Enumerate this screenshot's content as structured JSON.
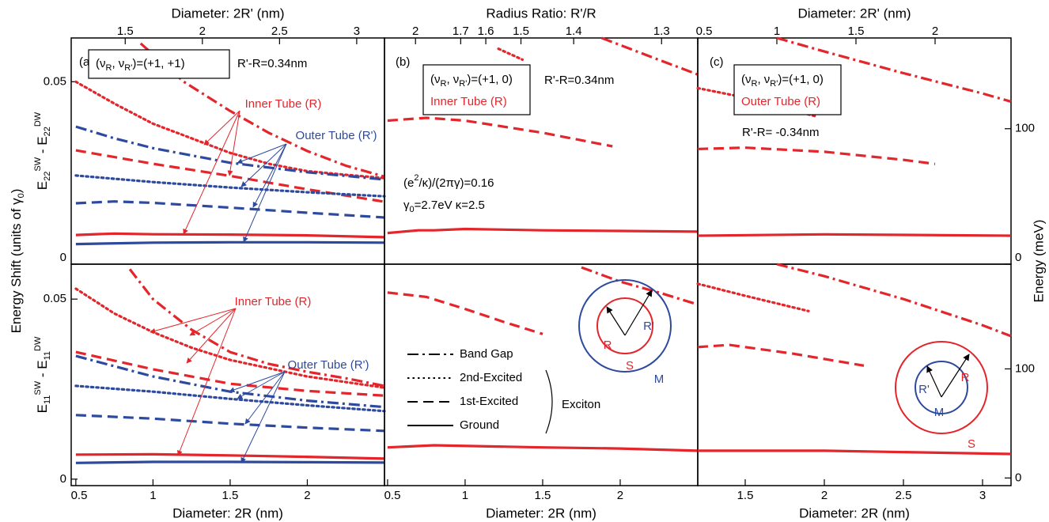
{
  "figure": {
    "y_label": [
      {
        "text": "Energy Shift  (units of γ"
      },
      {
        "text": "0",
        "shift": "sub"
      },
      {
        "text": ")"
      }
    ],
    "y2_label": "Energy  (meV)"
  },
  "chart_data": [
    {
      "type": "line",
      "panel_label": "(a)",
      "xlim": [
        0.47,
        2.5
      ],
      "x2lim": [
        1.15,
        3.18
      ],
      "x2ticks": [
        1.5,
        2,
        2.5,
        3
      ],
      "x2_label": "Diameter: 2R' (nm)",
      "ylim": [
        0,
        0.062
      ],
      "yticks": [
        0,
        0.05
      ],
      "y_label": [
        {
          "text": "E"
        },
        {
          "text": "22",
          "shift": "sub"
        },
        {
          "text": "SW",
          "shift": "sup"
        },
        {
          "text": " - E"
        },
        {
          "text": "22",
          "shift": "sub"
        },
        {
          "text": "DW",
          "shift": "sup"
        }
      ],
      "box": [
        {
          "parts": [
            {
              "text": "(ν"
            },
            {
              "text": "R",
              "shift": "sub"
            },
            {
              "text": ", ν"
            },
            {
              "text": "R'",
              "shift": "sub"
            },
            {
              "text": ")=(+1, +1)"
            }
          ],
          "color": "#000000"
        }
      ],
      "notes": [
        [
          {
            "text": "R'-R=0.34nm"
          }
        ]
      ],
      "arrow_labels": [
        {
          "text": "Inner Tube (R)",
          "color": "#e3262b"
        },
        {
          "text": "Outer Tube (R')",
          "color": "#2e4a9e"
        }
      ],
      "series": [
        {
          "style": "dashdot",
          "color": "#e3262b",
          "x": [
            0.92,
            1.2,
            1.5,
            1.75,
            2,
            2.25,
            2.5
          ],
          "values": [
            0.0605,
            0.05,
            0.042,
            0.036,
            0.031,
            0.027,
            0.024
          ]
        },
        {
          "style": "dotted",
          "color": "#e3262b",
          "x": [
            0.5,
            0.75,
            1,
            1.25,
            1.5,
            1.75,
            2,
            2.25,
            2.5
          ],
          "values": [
            0.05,
            0.044,
            0.0385,
            0.0345,
            0.0305,
            0.0275,
            0.0255,
            0.0245,
            0.0236
          ]
        },
        {
          "style": "dashdot",
          "color": "#2e4a9e",
          "x": [
            0.5,
            0.75,
            1,
            1.5,
            2,
            2.5
          ],
          "values": [
            0.0377,
            0.0345,
            0.0318,
            0.0278,
            0.0252,
            0.0232
          ]
        },
        {
          "style": "dashed",
          "color": "#e3262b",
          "x": [
            0.5,
            1,
            1.5,
            2,
            2.5
          ],
          "values": [
            0.0312,
            0.0275,
            0.0242,
            0.0205,
            0.0171
          ]
        },
        {
          "style": "dotted",
          "color": "#2e4a9e",
          "x": [
            0.5,
            1,
            1.5,
            2,
            2.5
          ],
          "values": [
            0.0243,
            0.0225,
            0.021,
            0.0197,
            0.0186
          ]
        },
        {
          "style": "dashed",
          "color": "#2e4a9e",
          "x": [
            0.5,
            0.75,
            1,
            1.5,
            2,
            2.5
          ],
          "values": [
            0.0167,
            0.0172,
            0.0168,
            0.0155,
            0.0141,
            0.0128
          ]
        },
        {
          "style": "solid",
          "color": "#e3262b",
          "x": [
            0.5,
            0.75,
            1,
            1.5,
            2,
            2.5
          ],
          "values": [
            0.008,
            0.0084,
            0.0082,
            0.0081,
            0.0079,
            0.0074
          ]
        },
        {
          "style": "solid",
          "color": "#2e4a9e",
          "x": [
            0.5,
            1,
            1.5,
            2,
            2.5
          ],
          "values": [
            0.0055,
            0.0059,
            0.006,
            0.006,
            0.0059
          ]
        }
      ]
    },
    {
      "type": "line",
      "panel_label": "(b)",
      "xlim": [
        0.48,
        2.5
      ],
      "x2ticks": [
        2,
        1.7,
        1.6,
        1.5,
        1.4,
        1.3
      ],
      "x2_scale": {
        "type": "ratio",
        "gap": 0.34
      },
      "x2_label": "Radius Ratio: R'/R",
      "y2lim": [
        0,
        167
      ],
      "box": [
        {
          "parts": [
            {
              "text": "(ν"
            },
            {
              "text": "R",
              "shift": "sub"
            },
            {
              "text": ", ν"
            },
            {
              "text": "R'",
              "shift": "sub"
            },
            {
              "text": ")=(+1, 0)"
            }
          ],
          "color": "#000000"
        },
        {
          "parts": [
            {
              "text": "Inner Tube (R)"
            }
          ],
          "color": "#e3262b"
        }
      ],
      "notes": [
        [
          {
            "text": "R'-R=0.34nm"
          }
        ],
        [
          {
            "text": "(e"
          },
          {
            "text": "2",
            "shift": "sup"
          },
          {
            "text": "/κ)/(2πγ)=0.16"
          }
        ],
        [
          {
            "text": "γ"
          },
          {
            "text": "0",
            "shift": "sub"
          },
          {
            "text": "=2.7eV  κ=2.5"
          }
        ]
      ],
      "series": [
        {
          "style": "dashdot",
          "color": "#e3262b",
          "axis": "y2",
          "x": [
            1.88,
            2.2,
            2.5
          ],
          "values": [
            167,
            153,
            140
          ]
        },
        {
          "style": "dotted",
          "color": "#e3262b",
          "axis": "y2",
          "x": [
            1.215,
            1.37
          ],
          "values": [
            159,
            151
          ]
        },
        {
          "style": "dashed",
          "color": "#e3262b",
          "axis": "y2",
          "x": [
            0.5,
            0.75,
            1,
            1.5,
            1.95
          ],
          "values": [
            106,
            108,
            106,
            97,
            87
          ]
        },
        {
          "style": "solid",
          "color": "#e3262b",
          "axis": "y2",
          "x": [
            0.5,
            0.7,
            0.8,
            1,
            1.5,
            2,
            2.5
          ],
          "values": [
            23,
            25,
            25,
            26,
            25,
            24.5,
            24
          ]
        }
      ]
    },
    {
      "type": "line",
      "panel_label": "(c)",
      "xlim": [
        1.2,
        3.18
      ],
      "x2lim": [
        0.5,
        2.48
      ],
      "x2ticks": [
        0.5,
        1,
        1.5,
        2
      ],
      "x2_label": "Diameter: 2R' (nm)",
      "y2lim": [
        0,
        167
      ],
      "y2ticks": [
        0,
        100
      ],
      "box": [
        {
          "parts": [
            {
              "text": "(ν"
            },
            {
              "text": "R",
              "shift": "sub"
            },
            {
              "text": ", ν"
            },
            {
              "text": "R'",
              "shift": "sub"
            },
            {
              "text": ")=(+1, 0)"
            }
          ],
          "color": "#000000"
        },
        {
          "parts": [
            {
              "text": "Outer Tube (R)"
            }
          ],
          "color": "#e3262b"
        }
      ],
      "notes": [
        [
          {
            "text": "R'-R= -0.34nm"
          }
        ]
      ],
      "series": [
        {
          "style": "dashdot",
          "color": "#e3262b",
          "axis": "y2",
          "x": [
            1.7,
            2,
            2.5,
            3,
            3.18
          ],
          "values": [
            167,
            157,
            141,
            126,
            120
          ]
        },
        {
          "style": "dotted",
          "color": "#e3262b",
          "axis": "y2",
          "x": [
            1.2,
            1.5,
            1.95
          ],
          "values": [
            130,
            123,
            109
          ]
        },
        {
          "style": "dashed",
          "color": "#e3262b",
          "axis": "y2",
          "x": [
            1.2,
            1.5,
            2,
            2.5,
            2.7
          ],
          "values": [
            85,
            86,
            83,
            77,
            74
          ]
        },
        {
          "style": "solid",
          "color": "#e3262b",
          "axis": "y2",
          "x": [
            1.2,
            2,
            3.18
          ],
          "values": [
            21,
            22,
            21
          ]
        }
      ]
    },
    {
      "type": "line",
      "xlim": [
        0.47,
        2.5
      ],
      "xticks": [
        0.5,
        1,
        1.5,
        2
      ],
      "x_label": "Diameter: 2R (nm)",
      "ylim": [
        -0.0018,
        0.0597
      ],
      "yticks": [
        0,
        0.05
      ],
      "y_label": [
        {
          "text": "E"
        },
        {
          "text": "11",
          "shift": "sub"
        },
        {
          "text": "SW",
          "shift": "sup"
        },
        {
          "text": " - E"
        },
        {
          "text": "11",
          "shift": "sub"
        },
        {
          "text": "DW",
          "shift": "sup"
        }
      ],
      "arrow_labels": [
        {
          "text": "Inner Tube (R)",
          "color": "#e3262b"
        },
        {
          "text": "Outer Tube (R')",
          "color": "#2e4a9e"
        }
      ],
      "series": [
        {
          "style": "dashdot",
          "color": "#e3262b",
          "x": [
            0.85,
            1,
            1.25,
            1.5,
            1.75,
            2,
            2.25,
            2.5
          ],
          "values": [
            0.0583,
            0.05,
            0.0415,
            0.0353,
            0.032,
            0.0298,
            0.028,
            0.0259
          ]
        },
        {
          "style": "dotted",
          "color": "#e3262b",
          "x": [
            0.5,
            0.75,
            1,
            1.25,
            1.5,
            2,
            2.5
          ],
          "values": [
            0.0529,
            0.046,
            0.0408,
            0.0365,
            0.0331,
            0.0285,
            0.0254
          ]
        },
        {
          "style": "dashed",
          "color": "#e3262b",
          "x": [
            0.5,
            1,
            1.5,
            2,
            2.5
          ],
          "values": [
            0.0353,
            0.0305,
            0.0265,
            0.0245,
            0.0232
          ]
        },
        {
          "style": "dashdot",
          "color": "#2e4a9e",
          "x": [
            0.5,
            1,
            1.5,
            2,
            2.5
          ],
          "values": [
            0.0342,
            0.0285,
            0.0243,
            0.0218,
            0.02
          ]
        },
        {
          "style": "dotted",
          "color": "#2e4a9e",
          "x": [
            0.5,
            1,
            1.5,
            2,
            2.5
          ],
          "values": [
            0.0259,
            0.0243,
            0.0223,
            0.0205,
            0.0189
          ]
        },
        {
          "style": "dashed",
          "color": "#2e4a9e",
          "x": [
            0.5,
            1,
            1.5,
            2,
            2.5
          ],
          "values": [
            0.0178,
            0.0168,
            0.0154,
            0.0143,
            0.0134
          ]
        },
        {
          "style": "solid",
          "color": "#e3262b",
          "x": [
            0.5,
            1,
            1.5,
            2,
            2.5
          ],
          "values": [
            0.0068,
            0.0069,
            0.0066,
            0.0062,
            0.0057
          ]
        },
        {
          "style": "solid",
          "color": "#2e4a9e",
          "x": [
            0.5,
            1,
            1.5,
            2,
            2.5
          ],
          "values": [
            0.0045,
            0.0048,
            0.0048,
            0.0047,
            0.0046
          ]
        }
      ]
    },
    {
      "type": "line",
      "xlim": [
        0.48,
        2.5
      ],
      "xticks": [
        0.5,
        1,
        1.5,
        2
      ],
      "x_label": "Diameter: 2R (nm)",
      "y2lim": [
        -7,
        196
      ],
      "legend": {
        "entries": [
          {
            "label": "Band Gap",
            "style": "dashdot"
          },
          {
            "label": "2nd-Excited",
            "style": "dotted"
          },
          {
            "label": "1st-Excited",
            "style": "dashed"
          },
          {
            "label": "Ground",
            "style": "solid"
          }
        ],
        "group_label": "Exciton"
      },
      "diagram": {
        "inner_color": "#e3262b",
        "outer_color": "#2e4a9e",
        "labels": [
          {
            "text": "R",
            "color": "#e3262b"
          },
          {
            "text": "R'",
            "color": "#2e4a9e"
          },
          {
            "text": "S",
            "color": "#e3262b"
          },
          {
            "text": "M",
            "color": "#2e4a9e"
          }
        ]
      },
      "series": [
        {
          "style": "dashdot",
          "color": "#e3262b",
          "axis": "y2",
          "x": [
            1.75,
            2,
            2.25,
            2.5
          ],
          "values": [
            193,
            180,
            170,
            159
          ]
        },
        {
          "style": "dashed",
          "color": "#e3262b",
          "axis": "y2",
          "x": [
            0.5,
            0.75,
            1,
            1.25,
            1.5
          ],
          "values": [
            170,
            166,
            155,
            143,
            132
          ]
        },
        {
          "style": "solid",
          "color": "#e3262b",
          "axis": "y2",
          "x": [
            0.5,
            0.8,
            1.5,
            2,
            2.5
          ],
          "values": [
            28,
            30,
            28,
            27,
            25
          ]
        }
      ]
    },
    {
      "type": "line",
      "xlim": [
        1.2,
        3.18
      ],
      "xticks": [
        1.5,
        2,
        2.5,
        3
      ],
      "x_label": "Diameter: 2R (nm)",
      "y2lim": [
        -7,
        196
      ],
      "y2ticks": [
        0,
        100
      ],
      "diagram": {
        "inner_color": "#2e4a9e",
        "outer_color": "#e3262b",
        "labels": [
          {
            "text": "R'",
            "color": "#2e4a9e"
          },
          {
            "text": "R",
            "color": "#e3262b"
          },
          {
            "text": "M",
            "color": "#2e4a9e"
          },
          {
            "text": "S",
            "color": "#e3262b"
          }
        ]
      },
      "series": [
        {
          "style": "dashdot",
          "color": "#e3262b",
          "axis": "y2",
          "x": [
            1.7,
            2,
            2.5,
            3,
            3.18
          ],
          "values": [
            196,
            185,
            164,
            140,
            130
          ]
        },
        {
          "style": "dotted",
          "color": "#e3262b",
          "axis": "y2",
          "x": [
            1.2,
            1.5,
            1.9
          ],
          "values": [
            178,
            167,
            153
          ]
        },
        {
          "style": "dashed",
          "color": "#e3262b",
          "axis": "y2",
          "x": [
            1.2,
            1.4,
            1.8,
            2.25
          ],
          "values": [
            120,
            122,
            114,
            103
          ]
        },
        {
          "style": "solid",
          "color": "#e3262b",
          "axis": "y2",
          "x": [
            1.2,
            2,
            3.18
          ],
          "values": [
            25,
            25,
            22
          ]
        }
      ]
    }
  ]
}
